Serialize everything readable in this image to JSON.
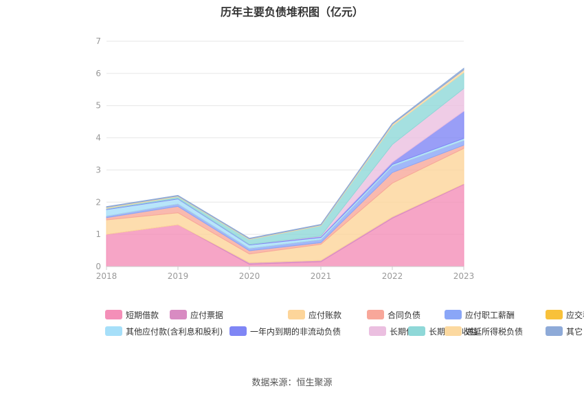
{
  "chart_data": {
    "type": "area",
    "stacked": true,
    "title": "历年主要负债堆积图（亿元）",
    "x": [
      "2018",
      "2019",
      "2020",
      "2021",
      "2022",
      "2023"
    ],
    "y_ticks": [
      "0",
      "1",
      "2",
      "3",
      "4",
      "5",
      "6",
      "7"
    ],
    "ylim": [
      0,
      7
    ],
    "grid": true,
    "legend_position": "bottom",
    "series": [
      {
        "name": "短期借款",
        "color": "#f48fb8",
        "values": [
          1.0,
          1.3,
          0.07,
          0.15,
          1.5,
          2.55
        ]
      },
      {
        "name": "应付票据",
        "color": "#d88bc2",
        "values": [
          0,
          0,
          0.05,
          0.04,
          0.04,
          0.02
        ]
      },
      {
        "name": "应付账款",
        "color": "#fdd59a",
        "values": [
          0.45,
          0.37,
          0.27,
          0.5,
          1.05,
          1.1
        ]
      },
      {
        "name": "合同负债",
        "color": "#f8a79a",
        "values": [
          0.07,
          0.2,
          0.1,
          0.05,
          0.33,
          0.1
        ]
      },
      {
        "name": "应付职工薪酬",
        "color": "#8aa6f7",
        "values": [
          0.05,
          0.08,
          0.08,
          0.1,
          0.2,
          0.15
        ]
      },
      {
        "name": "应交税费",
        "color": "#f8c13a",
        "values": [
          0,
          0,
          0,
          0,
          0,
          0
        ]
      },
      {
        "name": "其他应付款(含利息和股利)",
        "color": "#a6dff9",
        "values": [
          0.2,
          0.15,
          0.1,
          0.06,
          0.05,
          0.06
        ]
      },
      {
        "name": "一年内到期的非流动负债",
        "color": "#7f86f5",
        "values": [
          0.02,
          0.02,
          0.02,
          0.03,
          0.07,
          0.85
        ]
      },
      {
        "name": "长期借款",
        "color": "#ebbfe0",
        "values": [
          0,
          0,
          0,
          0.02,
          0.55,
          0.7
        ]
      },
      {
        "name": "长期递延收益",
        "color": "#8fd8d8",
        "values": [
          0.02,
          0.05,
          0.15,
          0.32,
          0.58,
          0.5
        ]
      },
      {
        "name": "递延所得税负债",
        "color": "#fcd9a0",
        "values": [
          0.03,
          0.02,
          0.02,
          0.02,
          0.05,
          0.08
        ]
      },
      {
        "name": "其它",
        "color": "#8eaad8",
        "values": [
          0.02,
          0.02,
          0.02,
          0.02,
          0.03,
          0.05
        ]
      }
    ]
  },
  "source_label": "数据来源：",
  "source_name": "恒生聚源"
}
